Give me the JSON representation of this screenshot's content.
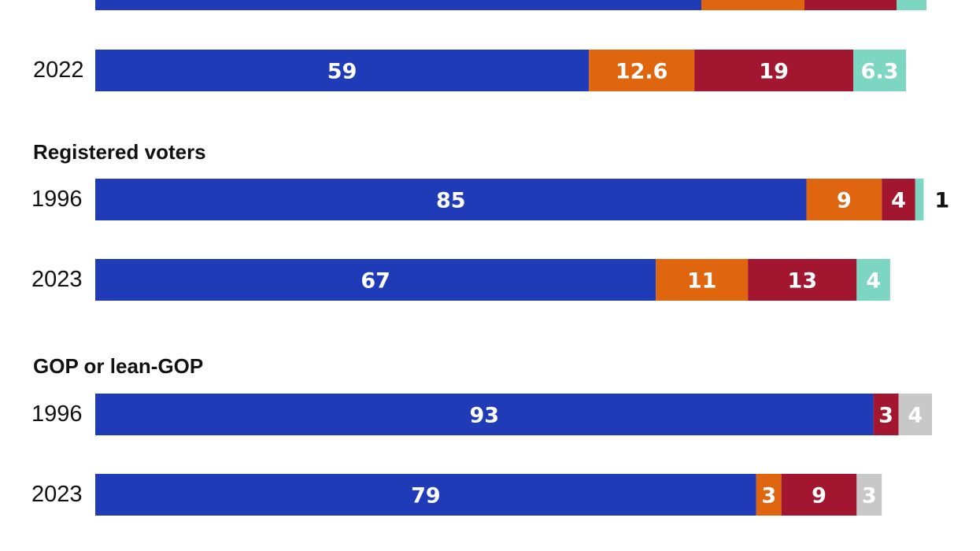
{
  "chart_data": {
    "type": "bar",
    "orientation": "horizontal",
    "stacked": true,
    "colors": [
      "#1f3bb8",
      "#e0650f",
      "#a3162f",
      "#7dd6c2",
      "#c8c8c8"
    ],
    "groups": [
      {
        "title": "",
        "rows": [
          {
            "label": "",
            "values": [
              null,
              null,
              null,
              null
            ],
            "partial": true
          },
          {
            "label": "2022",
            "values": [
              59,
              12.6,
              19,
              6.3
            ],
            "labels": [
              "59",
              "12.6",
              "19",
              "6.3"
            ],
            "color_idx": [
              0,
              1,
              2,
              3
            ]
          }
        ]
      },
      {
        "title": "Registered voters",
        "rows": [
          {
            "label": "1996",
            "values": [
              85,
              9,
              4,
              1
            ],
            "labels": [
              "85",
              "9",
              "4",
              "1"
            ],
            "color_idx": [
              0,
              1,
              2,
              3
            ]
          },
          {
            "label": "2023",
            "values": [
              67,
              11,
              13,
              4
            ],
            "labels": [
              "67",
              "11",
              "13",
              "4"
            ],
            "color_idx": [
              0,
              1,
              2,
              3
            ]
          }
        ]
      },
      {
        "title": "GOP or lean-GOP",
        "rows": [
          {
            "label": "1996",
            "values": [
              93,
              3,
              4
            ],
            "labels": [
              "93",
              "3",
              "4"
            ],
            "color_idx": [
              0,
              2,
              4
            ]
          },
          {
            "label": "2023",
            "values": [
              79,
              3,
              9,
              3
            ],
            "labels": [
              "79",
              "3",
              "9",
              "3"
            ],
            "color_idx": [
              0,
              1,
              2,
              4
            ]
          }
        ]
      }
    ]
  }
}
